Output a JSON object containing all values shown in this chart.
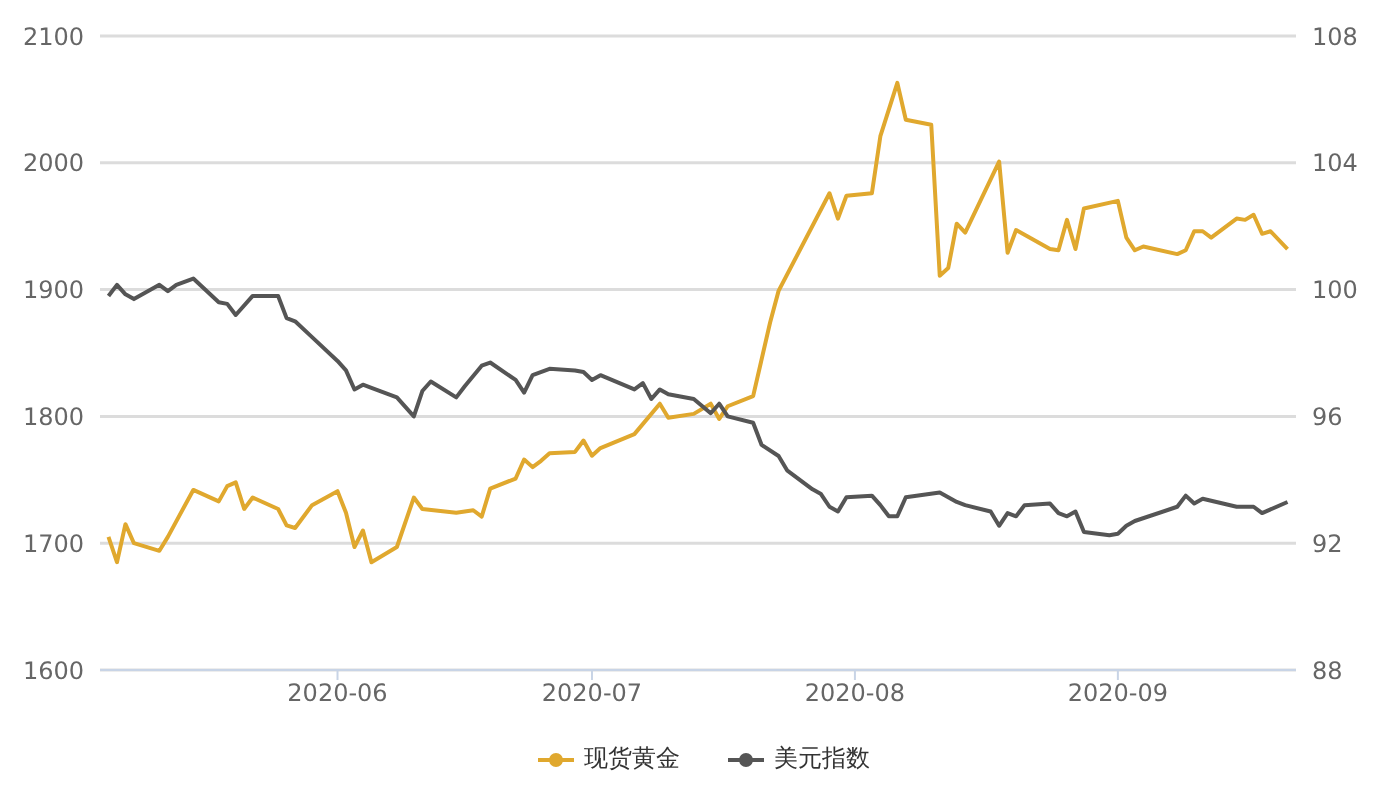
{
  "chart_data": {
    "type": "line",
    "legend": "bottom",
    "grid": "y",
    "marker": "none",
    "line_style": "solid",
    "xlim": [
      "2020-05-04",
      "2020-09-22"
    ],
    "xticks": [
      {
        "value": "2020-06-01",
        "label": "2020-06"
      },
      {
        "value": "2020-07-01",
        "label": "2020-07"
      },
      {
        "value": "2020-08-01",
        "label": "2020-08"
      },
      {
        "value": "2020-09-01",
        "label": "2020-09"
      }
    ],
    "ylim": [
      1600,
      2100
    ],
    "yticks": [
      1600,
      1700,
      1800,
      1900,
      2000,
      2100
    ],
    "y2lim": [
      88,
      108
    ],
    "y2ticks": [
      88,
      92,
      96,
      100,
      104,
      108
    ],
    "series": [
      {
        "name": "现货黄金",
        "color": "#e0a82e",
        "x": [
          "2020-05-05",
          "2020-05-06",
          "2020-05-07",
          "2020-05-08",
          "2020-05-11",
          "2020-05-12",
          "2020-05-15",
          "2020-05-18",
          "2020-05-19",
          "2020-05-20",
          "2020-05-21",
          "2020-05-22",
          "2020-05-25",
          "2020-05-26",
          "2020-05-27",
          "2020-05-29",
          "2020-06-01",
          "2020-06-02",
          "2020-06-03",
          "2020-06-04",
          "2020-06-05",
          "2020-06-08",
          "2020-06-10",
          "2020-06-11",
          "2020-06-15",
          "2020-06-17",
          "2020-06-18",
          "2020-06-19",
          "2020-06-22",
          "2020-06-23",
          "2020-06-24",
          "2020-06-25",
          "2020-06-26",
          "2020-06-29",
          "2020-06-30",
          "2020-07-01",
          "2020-07-02",
          "2020-07-06",
          "2020-07-09",
          "2020-07-10",
          "2020-07-13",
          "2020-07-15",
          "2020-07-16",
          "2020-07-17",
          "2020-07-20",
          "2020-07-22",
          "2020-07-23",
          "2020-07-29",
          "2020-07-30",
          "2020-07-31",
          "2020-08-03",
          "2020-08-04",
          "2020-08-06",
          "2020-08-07",
          "2020-08-10",
          "2020-08-11",
          "2020-08-12",
          "2020-08-13",
          "2020-08-14",
          "2020-08-18",
          "2020-08-19",
          "2020-08-20",
          "2020-08-24",
          "2020-08-25",
          "2020-08-26",
          "2020-08-27",
          "2020-08-28",
          "2020-09-01",
          "2020-09-02",
          "2020-09-03",
          "2020-09-04",
          "2020-09-08",
          "2020-09-09",
          "2020-09-10",
          "2020-09-11",
          "2020-09-12",
          "2020-09-15",
          "2020-09-16",
          "2020-09-17",
          "2020-09-18",
          "2020-09-19",
          "2020-09-21"
        ],
        "values": [
          1705,
          1685,
          1715,
          1700,
          1694,
          1705,
          1742,
          1733,
          1745,
          1748,
          1727,
          1736,
          1727,
          1714,
          1712,
          1730,
          1741,
          1724,
          1697,
          1710,
          1685,
          1697,
          1736,
          1727,
          1724,
          1726,
          1721,
          1743,
          1751,
          1766,
          1760,
          1765,
          1771,
          1772,
          1781,
          1769,
          1775,
          1786,
          1810,
          1799,
          1802,
          1810,
          1798,
          1808,
          1816,
          1874,
          1899,
          1976,
          1956,
          1974,
          1976,
          2021,
          2063,
          2034,
          2030,
          1911,
          1917,
          1952,
          1945,
          2001,
          1929,
          1947,
          1932,
          1931,
          1955,
          1932,
          1964,
          1970,
          1941,
          1931,
          1934,
          1928,
          1931,
          1946,
          1946,
          1941,
          1956,
          1955,
          1959,
          1944,
          1946,
          1932
        ]
      },
      {
        "name": "美元指数",
        "color": "#555555",
        "axis": "y2",
        "x": [
          "2020-05-05",
          "2020-05-06",
          "2020-05-07",
          "2020-05-08",
          "2020-05-11",
          "2020-05-12",
          "2020-05-13",
          "2020-05-15",
          "2020-05-18",
          "2020-05-19",
          "2020-05-20",
          "2020-05-22",
          "2020-05-25",
          "2020-05-26",
          "2020-05-27",
          "2020-05-29",
          "2020-06-01",
          "2020-06-02",
          "2020-06-03",
          "2020-06-04",
          "2020-06-05",
          "2020-06-08",
          "2020-06-10",
          "2020-06-11",
          "2020-06-12",
          "2020-06-15",
          "2020-06-16",
          "2020-06-18",
          "2020-06-19",
          "2020-06-22",
          "2020-06-23",
          "2020-06-24",
          "2020-06-26",
          "2020-06-29",
          "2020-06-30",
          "2020-07-01",
          "2020-07-02",
          "2020-07-06",
          "2020-07-07",
          "2020-07-08",
          "2020-07-09",
          "2020-07-10",
          "2020-07-13",
          "2020-07-15",
          "2020-07-16",
          "2020-07-17",
          "2020-07-20",
          "2020-07-21",
          "2020-07-23",
          "2020-07-24",
          "2020-07-27",
          "2020-07-28",
          "2020-07-29",
          "2020-07-30",
          "2020-07-31",
          "2020-08-03",
          "2020-08-04",
          "2020-08-05",
          "2020-08-06",
          "2020-08-07",
          "2020-08-11",
          "2020-08-13",
          "2020-08-14",
          "2020-08-17",
          "2020-08-18",
          "2020-08-19",
          "2020-08-20",
          "2020-08-21",
          "2020-08-24",
          "2020-08-25",
          "2020-08-26",
          "2020-08-27",
          "2020-08-28",
          "2020-08-31",
          "2020-09-01",
          "2020-09-02",
          "2020-09-03",
          "2020-09-08",
          "2020-09-09",
          "2020-09-10",
          "2020-09-11",
          "2020-09-15",
          "2020-09-17",
          "2020-09-18",
          "2020-09-21"
        ],
        "values": [
          99.8,
          100.15,
          99.85,
          99.7,
          100.15,
          99.95,
          100.15,
          100.35,
          99.6,
          99.55,
          99.2,
          99.8,
          99.8,
          99.1,
          99.0,
          98.5,
          97.75,
          97.45,
          96.85,
          97.0,
          96.9,
          96.6,
          96.0,
          96.8,
          97.1,
          96.6,
          96.95,
          97.6,
          97.7,
          97.15,
          96.75,
          97.3,
          97.5,
          97.45,
          97.4,
          97.15,
          97.3,
          96.85,
          97.05,
          96.55,
          96.85,
          96.7,
          96.55,
          96.1,
          96.4,
          96.0,
          95.8,
          95.1,
          94.75,
          94.3,
          93.7,
          93.55,
          93.15,
          93.0,
          93.45,
          93.5,
          93.2,
          92.85,
          92.85,
          93.45,
          93.6,
          93.3,
          93.2,
          93.0,
          92.55,
          92.95,
          92.85,
          93.2,
          93.25,
          92.95,
          92.85,
          93.0,
          92.35,
          92.25,
          92.3,
          92.55,
          92.7,
          93.15,
          93.5,
          93.25,
          93.4,
          93.15,
          93.15,
          92.95,
          93.3
        ]
      }
    ]
  }
}
